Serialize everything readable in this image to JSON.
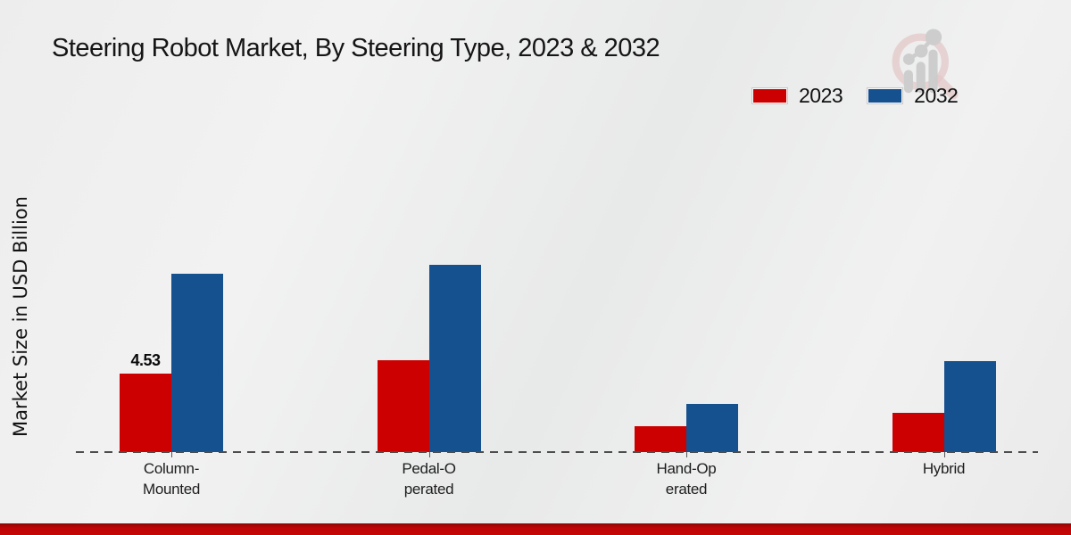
{
  "title": "Steering Robot Market, By Steering Type, 2023 & 2032",
  "colors": {
    "series_2023": "#cc0000",
    "series_2032": "#15508f",
    "footer_accent": "#c30606",
    "baseline": "#4d4d4d"
  },
  "chart_data": {
    "type": "bar",
    "title": "Steering Robot Market, By Steering Type, 2023 & 2032",
    "ylabel": "Market Size in USD Billion",
    "xlabel": "",
    "categories": [
      "Column-Mounted",
      "Pedal-Operated",
      "Hand-Operated",
      "Hybrid"
    ],
    "category_display_lines": [
      [
        "Column-",
        "Mounted"
      ],
      [
        "Pedal-O",
        "perated"
      ],
      [
        "Hand-Op",
        "erated"
      ],
      [
        "Hybrid"
      ]
    ],
    "series": [
      {
        "name": "2023",
        "color": "#cc0000",
        "values": [
          4.53,
          5.3,
          1.49,
          2.26
        ],
        "labels": [
          "4.53",
          "",
          "",
          ""
        ]
      },
      {
        "name": "2032",
        "color": "#15508f",
        "values": [
          10.3,
          10.81,
          2.78,
          5.25
        ],
        "labels": [
          "",
          "",
          "",
          ""
        ]
      }
    ],
    "ylim": [
      0,
      12
    ],
    "grid": false,
    "y_axis_visible": false,
    "baseline_style": "dashed",
    "legend_position": "top-right",
    "annotations": [
      {
        "text": "4.53",
        "category": "Column-Mounted",
        "series": "2023"
      }
    ]
  },
  "legend": {
    "items": [
      {
        "label": "2023",
        "color": "#cc0000"
      },
      {
        "label": "2032",
        "color": "#15508f"
      }
    ]
  }
}
